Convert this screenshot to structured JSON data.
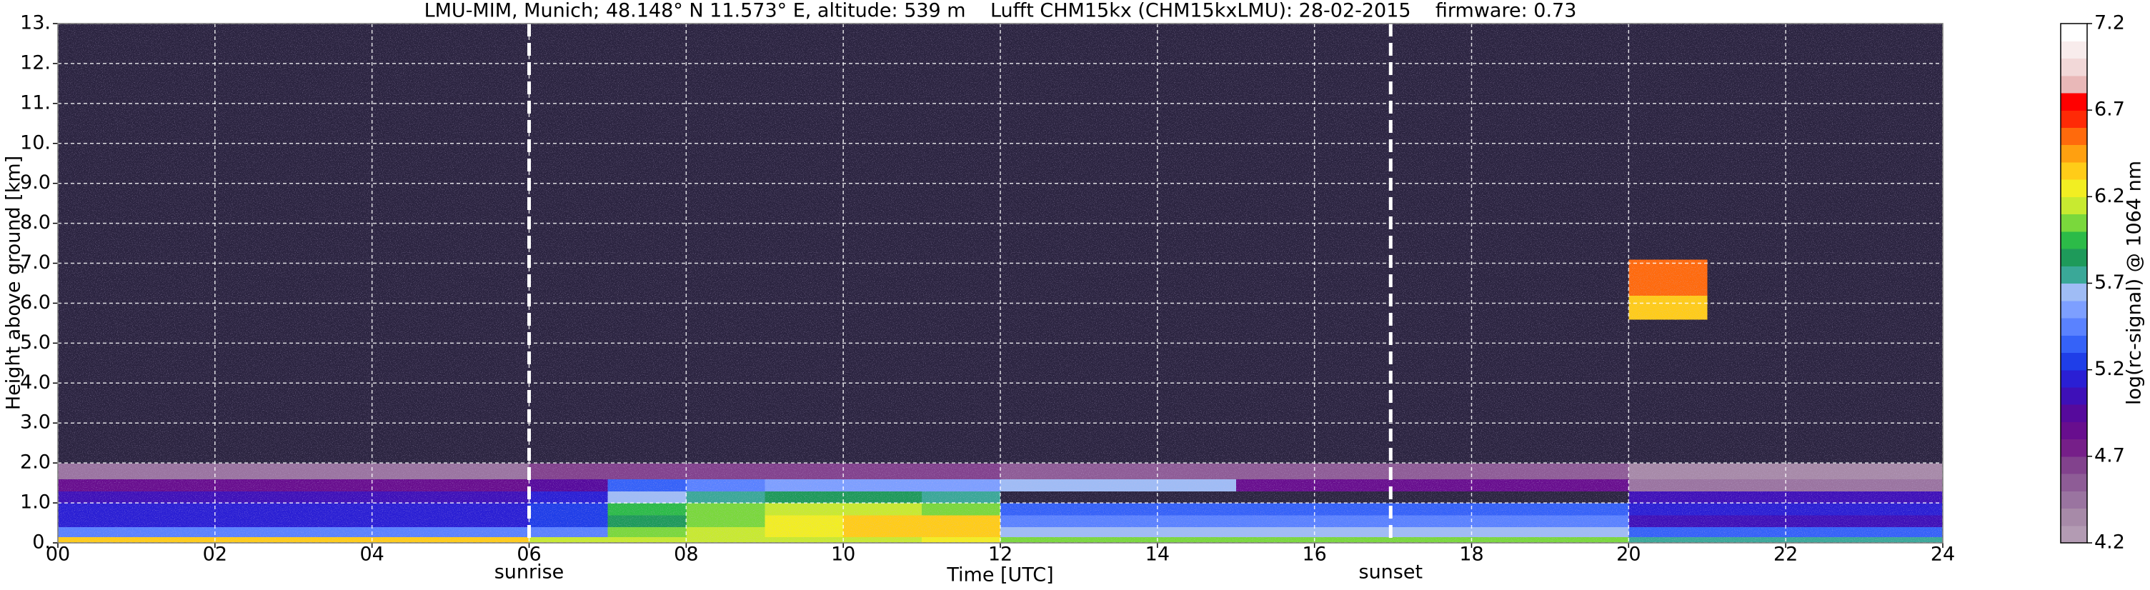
{
  "chart_data": {
    "type": "heatmap",
    "title": "LMU-MIM, Munich; 48.148° N 11.573° E, altitude: 539 m    Lufft CHM15kx (CHM15kxLMU): 28-02-2015    firmware: 0.73",
    "x_label": "Time [UTC]",
    "y_label": "Height above ground [km]",
    "colorbar_label": "log(rc-signal) @ 1064 nm",
    "xlim": [
      0,
      24
    ],
    "ylim": [
      0,
      13
    ],
    "xticks": [
      {
        "value": 0,
        "label": "00"
      },
      {
        "value": 2,
        "label": "02"
      },
      {
        "value": 4,
        "label": "04"
      },
      {
        "value": 6,
        "label": "06"
      },
      {
        "value": 8,
        "label": "08"
      },
      {
        "value": 10,
        "label": "10"
      },
      {
        "value": 12,
        "label": "12"
      },
      {
        "value": 14,
        "label": "14"
      },
      {
        "value": 16,
        "label": "16"
      },
      {
        "value": 18,
        "label": "18"
      },
      {
        "value": 20,
        "label": "20"
      },
      {
        "value": 22,
        "label": "22"
      },
      {
        "value": 24,
        "label": "24"
      }
    ],
    "yticks": [
      {
        "value": 0,
        "label": "0."
      },
      {
        "value": 1,
        "label": "1.0"
      },
      {
        "value": 2,
        "label": "2.0"
      },
      {
        "value": 3,
        "label": "3.0"
      },
      {
        "value": 4,
        "label": "4.0"
      },
      {
        "value": 5,
        "label": "5.0"
      },
      {
        "value": 6,
        "label": "6.0"
      },
      {
        "value": 7,
        "label": "7.0"
      },
      {
        "value": 8,
        "label": "8.0"
      },
      {
        "value": 9,
        "label": "9.0"
      },
      {
        "value": 10,
        "label": "10."
      },
      {
        "value": 11,
        "label": "11."
      },
      {
        "value": 12,
        "label": "12."
      },
      {
        "value": 13,
        "label": "13."
      }
    ],
    "grid": true,
    "clim": [
      4.2,
      7.2
    ],
    "cticks": [
      4.2,
      4.7,
      5.2,
      5.7,
      6.2,
      6.7,
      7.2
    ],
    "below_color": "#2b2440",
    "colormap": [
      "#b39bb3",
      "#a78aa8",
      "#9a74a0",
      "#8e5c96",
      "#82428d",
      "#761f89",
      "#680e8e",
      "#560a9c",
      "#3e10b8",
      "#2a1fd4",
      "#1f3ee8",
      "#3562f8",
      "#5a82ff",
      "#7d9fff",
      "#9fbcf5",
      "#3aa898",
      "#1e9a5a",
      "#2cbb48",
      "#7ad83c",
      "#c8ea30",
      "#f2ee22",
      "#ffcc18",
      "#ffa010",
      "#ff6a0c",
      "#ff2a06",
      "#ff0000",
      "#e9b8b8",
      "#f2d8d8",
      "#f8ecec",
      "#ffffff"
    ],
    "x_bins": [
      0,
      1,
      2,
      3,
      4,
      5,
      6,
      7,
      8,
      9,
      10,
      11,
      12,
      13,
      14,
      15,
      16,
      17,
      18,
      19,
      20,
      21,
      22,
      23,
      24
    ],
    "y_bins": [
      0,
      0.15,
      0.4,
      0.7,
      1.0,
      1.3,
      1.6,
      2.0,
      5.6,
      6.2,
      7.1,
      13
    ],
    "values": [
      [
        6.3,
        6.3,
        6.3,
        6.3,
        6.3,
        6.3,
        6.1,
        6.1,
        6.1,
        6.1,
        6.1,
        6.2,
        6.0,
        6.0,
        6.0,
        6.0,
        6.0,
        6.0,
        6.0,
        6.0,
        5.7,
        5.7,
        5.7,
        5.7
      ],
      [
        5.4,
        5.4,
        5.4,
        5.4,
        5.4,
        5.4,
        5.4,
        6.0,
        6.1,
        6.2,
        6.3,
        6.3,
        5.6,
        5.6,
        5.6,
        5.6,
        5.6,
        5.6,
        5.6,
        5.6,
        5.3,
        5.3,
        5.3,
        5.3
      ],
      [
        5.1,
        5.1,
        5.1,
        5.1,
        5.1,
        5.1,
        5.2,
        5.8,
        6.0,
        6.2,
        6.3,
        6.3,
        5.4,
        5.4,
        5.4,
        5.4,
        5.4,
        5.4,
        5.4,
        5.4,
        5.0,
        5.0,
        5.0,
        5.0
      ],
      [
        5.1,
        5.1,
        5.1,
        5.1,
        5.1,
        5.1,
        5.2,
        5.9,
        6.0,
        6.1,
        6.1,
        6.0,
        5.3,
        5.3,
        5.3,
        5.3,
        5.3,
        5.3,
        5.3,
        5.3,
        5.1,
        5.1,
        5.1,
        5.1
      ],
      [
        5.0,
        5.0,
        5.0,
        5.0,
        5.0,
        5.0,
        5.1,
        5.6,
        5.7,
        5.8,
        5.8,
        5.7,
        4.0,
        4.0,
        4.0,
        4.0,
        4.0,
        4.0,
        4.0,
        4.0,
        5.0,
        5.0,
        5.0,
        5.0
      ],
      [
        4.8,
        4.8,
        4.8,
        4.8,
        4.8,
        4.8,
        4.9,
        5.3,
        5.4,
        5.5,
        5.5,
        5.5,
        5.6,
        5.6,
        5.6,
        4.8,
        4.8,
        4.8,
        4.8,
        4.8,
        4.4,
        4.4,
        4.4,
        4.4
      ],
      [
        4.4,
        4.4,
        4.4,
        4.4,
        4.4,
        4.4,
        4.6,
        4.6,
        4.6,
        4.6,
        4.6,
        4.6,
        4.5,
        4.5,
        4.5,
        4.5,
        4.5,
        4.5,
        4.5,
        4.5,
        4.3,
        4.3,
        4.3,
        4.3
      ],
      [
        4.0,
        4.0,
        4.0,
        4.0,
        4.0,
        4.0,
        4.0,
        4.0,
        4.0,
        4.0,
        4.0,
        4.0,
        4.0,
        4.0,
        4.0,
        4.0,
        4.0,
        4.0,
        4.0,
        4.0,
        4.0,
        4.0,
        4.0,
        4.0
      ],
      [
        4.0,
        4.0,
        4.0,
        4.0,
        4.0,
        4.0,
        4.0,
        4.0,
        4.0,
        4.0,
        4.0,
        4.0,
        4.0,
        4.0,
        4.0,
        4.0,
        4.0,
        4.0,
        4.0,
        4.0,
        6.3,
        4.0,
        4.0,
        4.0
      ],
      [
        4.0,
        4.0,
        4.0,
        4.0,
        4.0,
        4.0,
        4.0,
        4.0,
        4.0,
        4.0,
        4.0,
        4.0,
        4.0,
        4.0,
        4.0,
        4.0,
        4.0,
        4.0,
        4.0,
        4.0,
        6.5,
        4.0,
        4.0,
        4.0
      ],
      [
        4.0,
        4.0,
        4.0,
        4.0,
        4.0,
        4.0,
        4.0,
        4.0,
        4.0,
        4.0,
        4.0,
        4.0,
        4.0,
        4.0,
        4.0,
        4.0,
        4.0,
        4.0,
        4.0,
        4.0,
        4.0,
        4.0,
        4.0,
        4.0
      ]
    ],
    "annotations": [
      {
        "text": "sunrise",
        "x": 6
      },
      {
        "text": "sunset",
        "x": 16.97
      }
    ]
  }
}
